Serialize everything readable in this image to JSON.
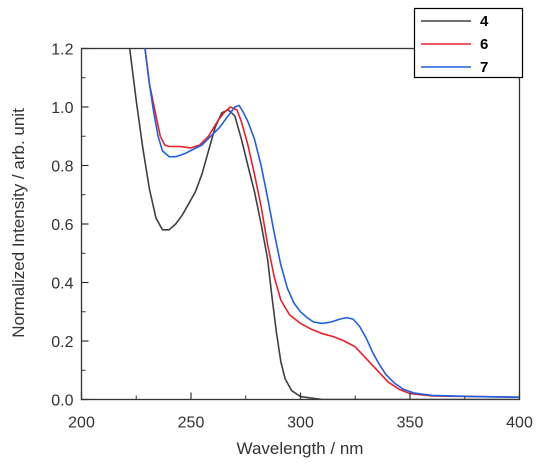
{
  "chart_data": {
    "type": "line",
    "xlabel": "Wavelength / nm",
    "ylabel": "Normalized Intensity / arb. unit",
    "xlim": [
      200,
      400
    ],
    "ylim": [
      0.0,
      1.2
    ],
    "x_ticks": [
      "200",
      "250",
      "300",
      "350",
      "400"
    ],
    "y_ticks": [
      "0.0",
      "0.2",
      "0.4",
      "0.6",
      "0.8",
      "1.0",
      "1.2"
    ],
    "grid": false,
    "legend_position": "top-right",
    "series": [
      {
        "name": "4",
        "color": "#404040",
        "points": [
          [
            222,
            1.2
          ],
          [
            225,
            1.02
          ],
          [
            228,
            0.86
          ],
          [
            231,
            0.72
          ],
          [
            234,
            0.62
          ],
          [
            237,
            0.58
          ],
          [
            240,
            0.58
          ],
          [
            243,
            0.6
          ],
          [
            246,
            0.63
          ],
          [
            249,
            0.67
          ],
          [
            252,
            0.71
          ],
          [
            255,
            0.77
          ],
          [
            258,
            0.85
          ],
          [
            261,
            0.93
          ],
          [
            264,
            0.98
          ],
          [
            267,
            0.99
          ],
          [
            270,
            0.97
          ],
          [
            273,
            0.89
          ],
          [
            276,
            0.8
          ],
          [
            279,
            0.71
          ],
          [
            282,
            0.6
          ],
          [
            285,
            0.48
          ],
          [
            287,
            0.35
          ],
          [
            289,
            0.23
          ],
          [
            291,
            0.13
          ],
          [
            293,
            0.07
          ],
          [
            296,
            0.03
          ],
          [
            300,
            0.01
          ],
          [
            310,
            0.0
          ],
          [
            330,
            0.0
          ],
          [
            400,
            0.0
          ]
        ]
      },
      {
        "name": "6",
        "color": "#e8202a",
        "points": [
          [
            229,
            1.2
          ],
          [
            231,
            1.08
          ],
          [
            234,
            0.97
          ],
          [
            236,
            0.9
          ],
          [
            238,
            0.87
          ],
          [
            240,
            0.865
          ],
          [
            245,
            0.865
          ],
          [
            250,
            0.86
          ],
          [
            254,
            0.87
          ],
          [
            258,
            0.9
          ],
          [
            262,
            0.95
          ],
          [
            265,
            0.98
          ],
          [
            268,
            1.0
          ],
          [
            271,
            0.99
          ],
          [
            273,
            0.95
          ],
          [
            276,
            0.87
          ],
          [
            279,
            0.77
          ],
          [
            282,
            0.66
          ],
          [
            285,
            0.53
          ],
          [
            288,
            0.42
          ],
          [
            291,
            0.34
          ],
          [
            295,
            0.29
          ],
          [
            300,
            0.26
          ],
          [
            305,
            0.24
          ],
          [
            310,
            0.225
          ],
          [
            315,
            0.215
          ],
          [
            320,
            0.2
          ],
          [
            325,
            0.18
          ],
          [
            330,
            0.14
          ],
          [
            335,
            0.1
          ],
          [
            340,
            0.06
          ],
          [
            345,
            0.035
          ],
          [
            350,
            0.02
          ],
          [
            360,
            0.012
          ],
          [
            380,
            0.01
          ],
          [
            400,
            0.008
          ]
        ]
      },
      {
        "name": "7",
        "color": "#1f5fe0",
        "points": [
          [
            229,
            1.2
          ],
          [
            231,
            1.08
          ],
          [
            233,
            0.98
          ],
          [
            235,
            0.9
          ],
          [
            237,
            0.85
          ],
          [
            240,
            0.83
          ],
          [
            243,
            0.83
          ],
          [
            247,
            0.84
          ],
          [
            251,
            0.855
          ],
          [
            255,
            0.87
          ],
          [
            259,
            0.9
          ],
          [
            263,
            0.93
          ],
          [
            267,
            0.97
          ],
          [
            270,
            1.0
          ],
          [
            272,
            1.005
          ],
          [
            274,
            0.98
          ],
          [
            276,
            0.95
          ],
          [
            279,
            0.89
          ],
          [
            282,
            0.8
          ],
          [
            285,
            0.69
          ],
          [
            288,
            0.57
          ],
          [
            291,
            0.46
          ],
          [
            294,
            0.38
          ],
          [
            297,
            0.33
          ],
          [
            300,
            0.3
          ],
          [
            303,
            0.28
          ],
          [
            306,
            0.265
          ],
          [
            310,
            0.26
          ],
          [
            314,
            0.265
          ],
          [
            318,
            0.275
          ],
          [
            321,
            0.28
          ],
          [
            324,
            0.275
          ],
          [
            327,
            0.25
          ],
          [
            330,
            0.21
          ],
          [
            333,
            0.16
          ],
          [
            336,
            0.12
          ],
          [
            339,
            0.085
          ],
          [
            343,
            0.055
          ],
          [
            347,
            0.035
          ],
          [
            352,
            0.022
          ],
          [
            360,
            0.014
          ],
          [
            380,
            0.01
          ],
          [
            400,
            0.008
          ]
        ]
      }
    ]
  }
}
